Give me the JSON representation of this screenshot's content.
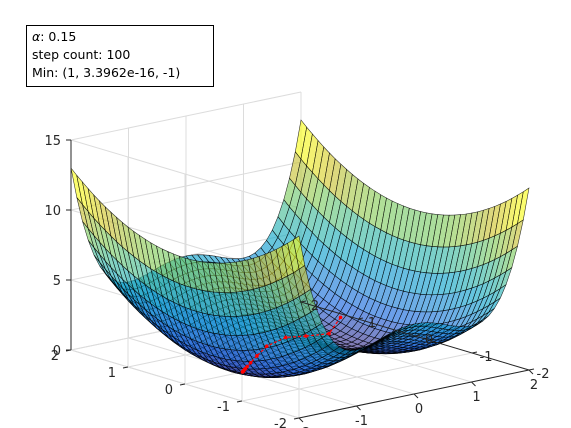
{
  "chart_data": {
    "type": "surface",
    "surface_function": "(x^2 - 1)^2 + y^2 over a 40x40 grid",
    "x_range": [
      -2,
      2
    ],
    "y_range": [
      -2,
      2
    ],
    "z_range": [
      0,
      15
    ],
    "x_ticks": [
      "-2",
      "-1",
      "0",
      "1",
      "2"
    ],
    "y_ticks": [
      "-2",
      "-1",
      "0",
      "1",
      "2"
    ],
    "z_ticks": [
      "0",
      "5",
      "10",
      "15"
    ],
    "grid": true,
    "colormap": "parula (semi-transparent)",
    "edge_color": "#000000",
    "path_color": "#ff0000",
    "path": {
      "x": [
        1.35,
        1.05,
        0.55,
        0.1,
        -0.3,
        -0.55,
        -0.72,
        -0.82,
        -0.88,
        -0.92,
        -0.95,
        -0.97,
        -0.98,
        -0.99,
        -1.0
      ],
      "y": [
        0.65,
        0.55,
        0.45,
        0.35,
        0.28,
        0.2,
        0.14,
        0.1,
        0.07,
        0.05,
        0.03,
        0.02,
        0.01,
        0.005,
        0.0
      ]
    },
    "annotation": {
      "alpha_symbol": "α",
      "alpha_text": ": 0.15",
      "step_text": "step count: 100",
      "min_text": "Min: (1, 3.3962e-16, -1)"
    }
  }
}
